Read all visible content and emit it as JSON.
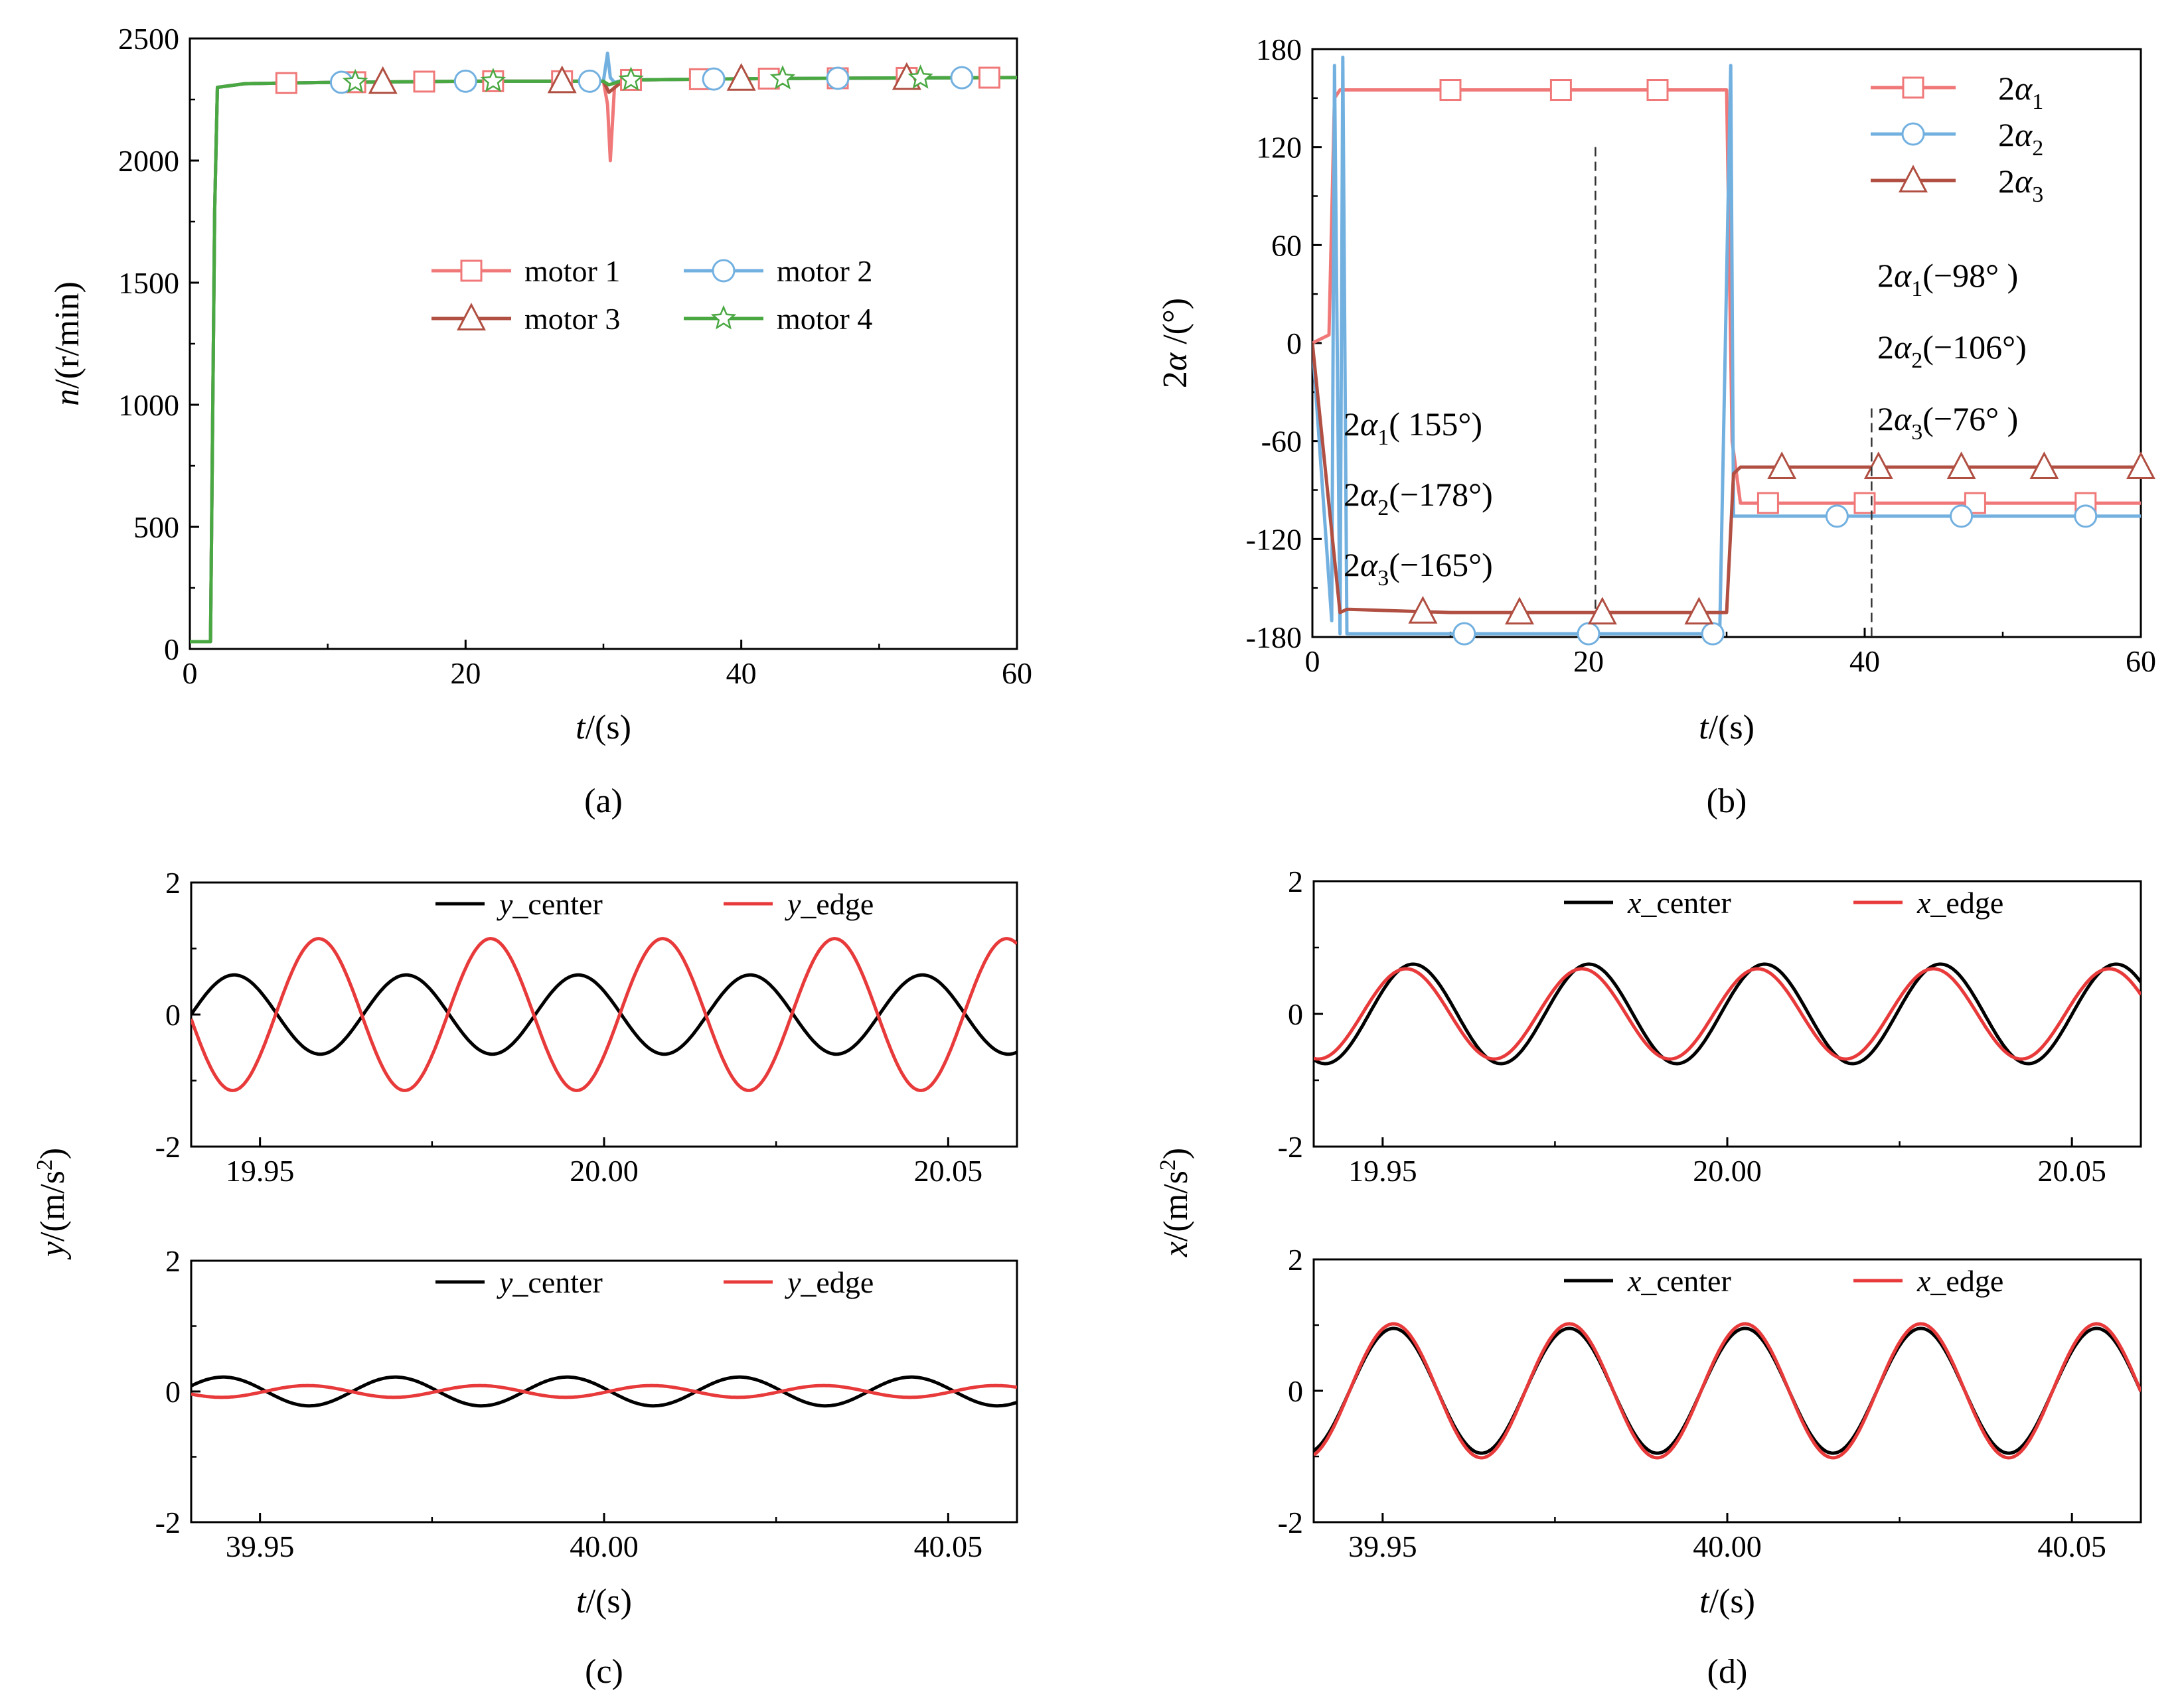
{
  "figure": {
    "captions": [
      "(a)",
      "(b)",
      "(c)",
      "(d)"
    ]
  },
  "chart_data": [
    {
      "id": "a",
      "type": "line",
      "xlabel_var": "t",
      "xlabel_unit": "/(s)",
      "ylabel_var": "n",
      "ylabel_unit": "/(r/min)",
      "xlim": [
        0,
        60
      ],
      "ylim": [
        0,
        2500
      ],
      "xticks": [
        "0",
        "20",
        "40",
        "60"
      ],
      "xtick_values": [
        0,
        20,
        40,
        60
      ],
      "yticks": [
        "0",
        "500",
        "1000",
        "1500",
        "2000",
        "2500"
      ],
      "ytick_values": [
        0,
        500,
        1000,
        1500,
        2000,
        2500
      ],
      "legend": [
        "motor 1",
        "motor 2",
        "motor 3",
        "motor 4"
      ],
      "series": [
        {
          "name": "motor 1",
          "color": "#f07878",
          "marker": "square",
          "x": [
            0,
            1.5,
            1.8,
            2.0,
            4,
            10,
            20,
            30,
            30.3,
            30.5,
            30.8,
            31.5,
            40,
            50,
            60
          ],
          "y": [
            30,
            30,
            1800,
            2300,
            2315,
            2320,
            2325,
            2325,
            2230,
            2000,
            2300,
            2330,
            2335,
            2338,
            2340
          ],
          "marker_x": [
            7,
            12,
            17,
            22,
            27,
            32,
            37,
            42,
            47,
            52,
            58
          ]
        },
        {
          "name": "motor 2",
          "color": "#72b0e0",
          "marker": "circle",
          "x": [
            0,
            1.5,
            1.8,
            2.0,
            4,
            10,
            20,
            30,
            30.3,
            30.5,
            30.8,
            31.5,
            40,
            50,
            60
          ],
          "y": [
            30,
            30,
            1800,
            2300,
            2315,
            2320,
            2325,
            2325,
            2440,
            2340,
            2320,
            2330,
            2335,
            2338,
            2340
          ],
          "marker_x": [
            11,
            20,
            29,
            38,
            47,
            56
          ]
        },
        {
          "name": "motor 3",
          "color": "#b04f42",
          "marker": "triangle",
          "x": [
            0,
            1.5,
            1.8,
            2.0,
            4,
            10,
            20,
            30,
            30.4,
            31.5,
            40,
            50,
            60
          ],
          "y": [
            30,
            30,
            1800,
            2300,
            2315,
            2320,
            2325,
            2325,
            2280,
            2330,
            2335,
            2338,
            2340
          ],
          "marker_x": [
            14,
            27,
            40,
            52
          ]
        },
        {
          "name": "motor 4",
          "color": "#4aa842",
          "marker": "star",
          "x": [
            0,
            1.5,
            1.8,
            2.0,
            4,
            10,
            20,
            30,
            30.4,
            31.5,
            40,
            50,
            60
          ],
          "y": [
            30,
            30,
            1800,
            2300,
            2315,
            2320,
            2325,
            2325,
            2310,
            2330,
            2335,
            2338,
            2340
          ],
          "marker_x": [
            12,
            22,
            32,
            43,
            53
          ]
        }
      ]
    },
    {
      "id": "b",
      "type": "line",
      "xlabel_var": "t",
      "xlabel_unit": "/(s)",
      "ylabel_var": "2α",
      "ylabel_unit": " /(°)",
      "xlim": [
        0,
        60
      ],
      "ylim": [
        -180,
        180
      ],
      "xticks": [
        "0",
        "20",
        "40",
        "60"
      ],
      "xtick_values": [
        0,
        20,
        40,
        60
      ],
      "yticks": [
        "180",
        "120",
        "60",
        "0",
        "-60",
        "-120",
        "-180"
      ],
      "ytick_values": [
        180,
        120,
        60,
        0,
        -60,
        -120,
        -180
      ],
      "legend": [
        "2α1",
        "2α2",
        "2α3"
      ],
      "legend_parts": [
        [
          "2α",
          "1"
        ],
        [
          "2α",
          "2"
        ],
        [
          "2α",
          "3"
        ]
      ],
      "series": [
        {
          "name": "2α1",
          "color": "#f07878",
          "marker": "square",
          "x": [
            0,
            1.2,
            1.6,
            2.0,
            10,
            20,
            30,
            30.4,
            31,
            40,
            50,
            60
          ],
          "y": [
            0,
            5,
            150,
            155,
            155,
            155,
            155,
            -60,
            -98,
            -98,
            -98,
            -98
          ],
          "marker_x": [
            10,
            18,
            25,
            33,
            40,
            48,
            56
          ]
        },
        {
          "name": "2α2",
          "color": "#72b0e0",
          "marker": "circle",
          "x": [
            0,
            1.4,
            1.6,
            2.0,
            2.2,
            2.5,
            10,
            20,
            29.5,
            30.3,
            30.5,
            31,
            40,
            50,
            60
          ],
          "y": [
            0,
            -170,
            170,
            -178,
            175,
            -178,
            -178,
            -178,
            -178,
            170,
            -106,
            -106,
            -106,
            -106,
            -106
          ],
          "marker_x": [
            11,
            20,
            29,
            38,
            47,
            56
          ]
        },
        {
          "name": "2α3",
          "color": "#b04f42",
          "marker": "triangle",
          "x": [
            0,
            2.0,
            2.5,
            10,
            20,
            30,
            30.5,
            31,
            40,
            50,
            60
          ],
          "y": [
            0,
            -165,
            -163,
            -165,
            -165,
            -165,
            -80,
            -76,
            -76,
            -76,
            -76
          ],
          "marker_x": [
            8,
            15,
            21,
            28,
            34,
            41,
            47,
            53,
            60
          ]
        }
      ],
      "dashed_vlines": [
        20.5,
        40.5
      ],
      "annotations_left": [
        {
          "var": "2α",
          "sub": "1",
          "value": "( 155°)"
        },
        {
          "var": "2α",
          "sub": "2",
          "value": "(−178°)"
        },
        {
          "var": "2α",
          "sub": "3",
          "value": "(−165°)"
        }
      ],
      "annotations_right": [
        {
          "var": "2α",
          "sub": "1",
          "value": "(−98° )"
        },
        {
          "var": "2α",
          "sub": "2",
          "value": "(−106°)"
        },
        {
          "var": "2α",
          "sub": "3",
          "value": "(−76° )"
        }
      ]
    },
    {
      "id": "c_top",
      "type": "line",
      "ylabel_var": "y",
      "ylabel_unit": "/(m/s",
      "ylabel_sup": "2",
      "ylabel_close": ")",
      "xlim": [
        19.94,
        20.06
      ],
      "ylim": [
        -2,
        2
      ],
      "xticks": [
        "19.95",
        "20.00",
        "20.05"
      ],
      "xtick_values": [
        19.95,
        20.0,
        20.05
      ],
      "yticks": [
        "2",
        "0",
        "-2"
      ],
      "ytick_values": [
        2,
        0,
        -2
      ],
      "legend": [
        {
          "var": "y",
          "text": "_center"
        },
        {
          "var": "y",
          "text": "_edge"
        }
      ],
      "series": [
        {
          "name": "y_center",
          "color": "#000000",
          "amplitude": 0.6,
          "period": 0.025,
          "phase": 0.0
        },
        {
          "name": "y_edge",
          "color": "#e83a3a",
          "amplitude": 1.15,
          "period": 0.025,
          "phase": 3.2
        }
      ]
    },
    {
      "id": "c_bottom",
      "type": "line",
      "xlabel_var": "t",
      "xlabel_unit": "/(s)",
      "xlim": [
        39.94,
        40.06
      ],
      "ylim": [
        -2,
        2
      ],
      "xticks": [
        "39.95",
        "40.00",
        "40.05"
      ],
      "xtick_values": [
        39.95,
        40.0,
        40.05
      ],
      "yticks": [
        "2",
        "0",
        "-2"
      ],
      "ytick_values": [
        2,
        0,
        -2
      ],
      "legend": [
        {
          "var": "y",
          "text": "_center"
        },
        {
          "var": "y",
          "text": "_edge"
        }
      ],
      "series": [
        {
          "name": "y_center",
          "color": "#000000",
          "amplitude": 0.22,
          "period": 0.025,
          "phase": 0.4
        },
        {
          "name": "y_edge",
          "color": "#e83a3a",
          "amplitude": 0.09,
          "period": 0.025,
          "phase": 3.6
        }
      ]
    },
    {
      "id": "d_top",
      "type": "line",
      "ylabel_var": "x",
      "ylabel_unit": "/(m/s",
      "ylabel_sup": "2",
      "ylabel_close": ")",
      "xlim": [
        19.94,
        20.06
      ],
      "ylim": [
        -2,
        2
      ],
      "xticks": [
        "19.95",
        "20.00",
        "20.05"
      ],
      "xtick_values": [
        19.95,
        20.0,
        20.05
      ],
      "yticks": [
        "2",
        "0",
        "-2"
      ],
      "ytick_values": [
        2,
        0,
        -2
      ],
      "legend": [
        {
          "var": "x",
          "text": "_center"
        },
        {
          "var": "x",
          "text": "_edge"
        }
      ],
      "series": [
        {
          "name": "x_center",
          "color": "#000000",
          "amplitude": 0.75,
          "period": 0.0255,
          "phase": 4.3
        },
        {
          "name": "x_edge",
          "color": "#e83a3a",
          "amplitude": 0.68,
          "period": 0.0255,
          "phase": 4.55
        }
      ]
    },
    {
      "id": "d_bottom",
      "type": "line",
      "xlabel_var": "t",
      "xlabel_unit": "/(s)",
      "xlim": [
        39.94,
        40.06
      ],
      "ylim": [
        -2,
        2
      ],
      "xticks": [
        "39.95",
        "40.00",
        "40.05"
      ],
      "xtick_values": [
        39.95,
        40.0,
        40.05
      ],
      "yticks": [
        "2",
        "0",
        "-2"
      ],
      "ytick_values": [
        2,
        0,
        -2
      ],
      "legend": [
        {
          "var": "x",
          "text": "_center"
        },
        {
          "var": "x",
          "text": "_edge"
        }
      ],
      "series": [
        {
          "name": "x_center",
          "color": "#000000",
          "amplitude": 0.95,
          "period": 0.0255,
          "phase": 5.0
        },
        {
          "name": "x_edge",
          "color": "#e83a3a",
          "amplitude": 1.02,
          "period": 0.0255,
          "phase": 5.0
        }
      ]
    }
  ]
}
